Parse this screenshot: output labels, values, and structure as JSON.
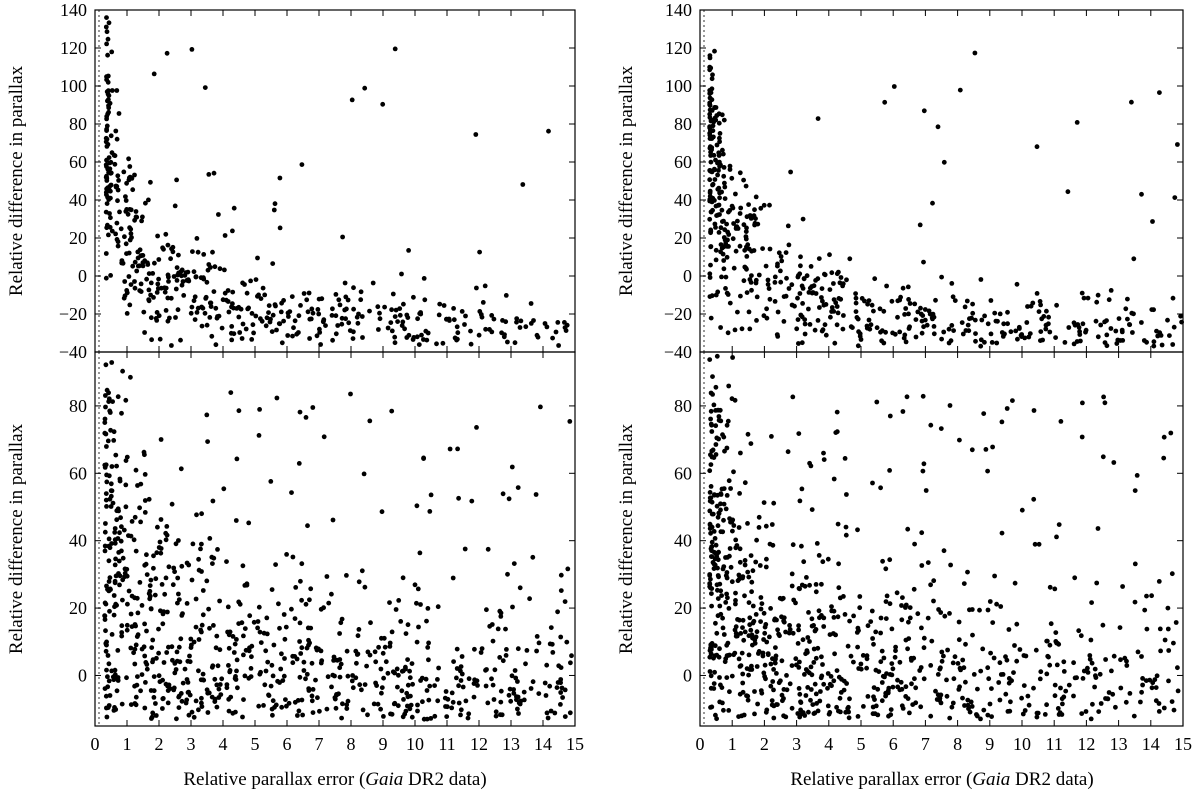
{
  "figure": {
    "x_title_prefix": "Relative parallax error (",
    "x_title_italic": "Gaia",
    "x_title_suffix": " DR2 data)"
  },
  "chart_data": [
    {
      "type": "scatter",
      "panel": "left-top",
      "ylabel": "Relative difference in parallax",
      "xlim": [
        0,
        15
      ],
      "ylim": [
        -40,
        140
      ],
      "yticks": [
        -40,
        -20,
        0,
        20,
        40,
        60,
        80,
        100,
        120,
        140
      ],
      "yticklabels": [
        "−40",
        "−20",
        "0",
        "20",
        "40",
        "60",
        "80",
        "100",
        "120",
        "140"
      ],
      "gen": {
        "seed": 11,
        "n": 560,
        "a": 95,
        "b": 0.55,
        "c": -36,
        "s0": 30,
        "s1": 6,
        "out": 0.06,
        "xmin": 0.35,
        "xmax": 14.8,
        "ymin": -37,
        "ymax": 139,
        "pow": 2.3
      }
    },
    {
      "type": "scatter",
      "panel": "right-top",
      "ylabel": "Relative difference in parallax",
      "xlim": [
        0,
        15
      ],
      "ylim": [
        -40,
        140
      ],
      "yticks": [
        -40,
        -20,
        0,
        20,
        40,
        60,
        80,
        100,
        120,
        140
      ],
      "yticklabels": [
        "−40",
        "−20",
        "0",
        "20",
        "40",
        "60",
        "80",
        "100",
        "120",
        "140"
      ],
      "gen": {
        "seed": 23,
        "n": 620,
        "a": 110,
        "b": 0.7,
        "c": -38,
        "s0": 32,
        "s1": 6,
        "out": 0.05,
        "xmin": 0.3,
        "xmax": 15,
        "ymin": -37,
        "ymax": 139,
        "pow": 2.1
      }
    },
    {
      "type": "scatter",
      "panel": "left-bottom",
      "xlabel": "Relative parallax error (Gaia DR2 data)",
      "ylabel": "Relative difference in parallax",
      "xlim": [
        0,
        15
      ],
      "ylim": [
        -15,
        96
      ],
      "xticks": [
        0,
        1,
        2,
        3,
        4,
        5,
        6,
        7,
        8,
        9,
        10,
        11,
        12,
        13,
        14,
        15
      ],
      "yticks": [
        0,
        20,
        40,
        60,
        80
      ],
      "yticklabels": [
        "0",
        "20",
        "40",
        "60",
        "80"
      ],
      "gen": {
        "seed": 37,
        "n": 1100,
        "a": 60,
        "b": 0.8,
        "c": -12,
        "s0": 28,
        "s1": 12,
        "out": 0.12,
        "xmin": 0.3,
        "xmax": 14.9,
        "ymin": -13,
        "ymax": 95,
        "pow": 1.8
      }
    },
    {
      "type": "scatter",
      "panel": "right-bottom",
      "xlabel": "Relative parallax error (Gaia DR2 data)",
      "ylabel": "Relative difference in parallax",
      "xlim": [
        0,
        15
      ],
      "ylim": [
        -15,
        96
      ],
      "xticks": [
        0,
        1,
        2,
        3,
        4,
        5,
        6,
        7,
        8,
        9,
        10,
        11,
        12,
        13,
        14,
        15
      ],
      "yticks": [
        0,
        20,
        40,
        60,
        80
      ],
      "yticklabels": [
        "0",
        "20",
        "40",
        "60",
        "80"
      ],
      "gen": {
        "seed": 53,
        "n": 1150,
        "a": 60,
        "b": 0.8,
        "c": -12,
        "s0": 28,
        "s1": 12,
        "out": 0.12,
        "xmin": 0.3,
        "xmax": 15,
        "ymin": -13,
        "ymax": 95,
        "pow": 1.8
      }
    }
  ]
}
